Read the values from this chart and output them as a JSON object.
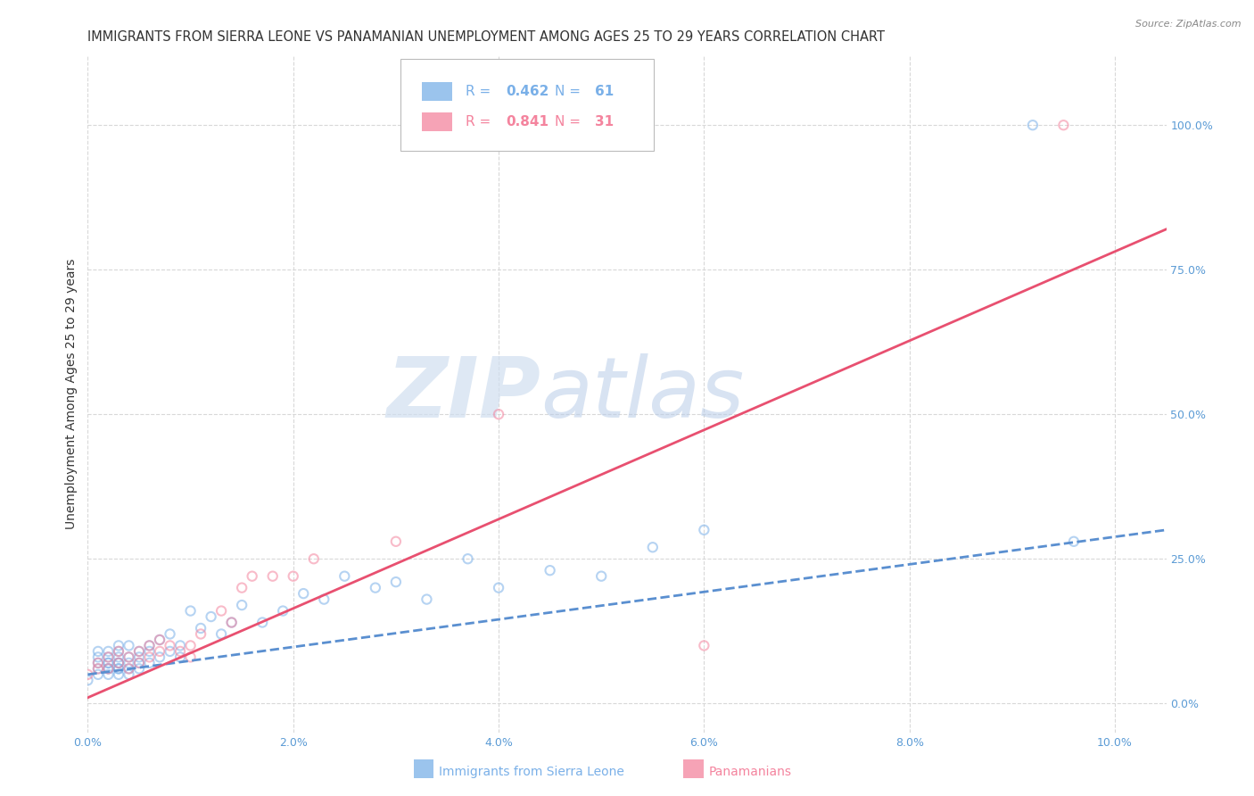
{
  "title": "IMMIGRANTS FROM SIERRA LEONE VS PANAMANIAN UNEMPLOYMENT AMONG AGES 25 TO 29 YEARS CORRELATION CHART",
  "source": "Source: ZipAtlas.com",
  "ylabel": "Unemployment Among Ages 25 to 29 years",
  "xlim": [
    0.0,
    0.105
  ],
  "ylim": [
    -0.05,
    1.12
  ],
  "right_yticks": [
    0.0,
    0.25,
    0.5,
    0.75,
    1.0
  ],
  "right_yticklabels": [
    "0.0%",
    "25.0%",
    "50.0%",
    "75.0%",
    "100.0%"
  ],
  "xticks": [
    0.0,
    0.02,
    0.04,
    0.06,
    0.08,
    0.1
  ],
  "xticklabels": [
    "0.0%",
    "2.0%",
    "4.0%",
    "6.0%",
    "8.0%",
    "10.0%"
  ],
  "series_blue": {
    "color": "#7ab0e8",
    "trend_color": "#5a8fd0",
    "trend_style": "--",
    "x": [
      0.0,
      0.001,
      0.001,
      0.001,
      0.001,
      0.001,
      0.002,
      0.002,
      0.002,
      0.002,
      0.002,
      0.002,
      0.002,
      0.003,
      0.003,
      0.003,
      0.003,
      0.003,
      0.003,
      0.003,
      0.003,
      0.004,
      0.004,
      0.004,
      0.004,
      0.004,
      0.005,
      0.005,
      0.005,
      0.005,
      0.006,
      0.006,
      0.006,
      0.007,
      0.007,
      0.008,
      0.008,
      0.009,
      0.009,
      0.01,
      0.011,
      0.012,
      0.013,
      0.014,
      0.015,
      0.017,
      0.019,
      0.021,
      0.023,
      0.025,
      0.028,
      0.03,
      0.033,
      0.037,
      0.04,
      0.045,
      0.05,
      0.055,
      0.06,
      0.092,
      0.096
    ],
    "y": [
      0.04,
      0.05,
      0.07,
      0.06,
      0.08,
      0.09,
      0.05,
      0.06,
      0.07,
      0.08,
      0.06,
      0.09,
      0.07,
      0.05,
      0.07,
      0.06,
      0.08,
      0.1,
      0.07,
      0.09,
      0.06,
      0.05,
      0.07,
      0.08,
      0.1,
      0.06,
      0.07,
      0.09,
      0.08,
      0.06,
      0.07,
      0.09,
      0.1,
      0.08,
      0.11,
      0.09,
      0.12,
      0.08,
      0.1,
      0.16,
      0.13,
      0.15,
      0.12,
      0.14,
      0.17,
      0.14,
      0.16,
      0.19,
      0.18,
      0.22,
      0.2,
      0.21,
      0.18,
      0.25,
      0.2,
      0.23,
      0.22,
      0.27,
      0.3,
      1.0,
      0.28
    ],
    "trend_x": [
      0.0,
      0.105
    ],
    "trend_y": [
      0.05,
      0.3
    ]
  },
  "series_pink": {
    "color": "#f4849e",
    "trend_color": "#e85070",
    "trend_style": "-",
    "x": [
      0.0,
      0.001,
      0.001,
      0.002,
      0.002,
      0.003,
      0.003,
      0.004,
      0.004,
      0.005,
      0.005,
      0.006,
      0.006,
      0.007,
      0.007,
      0.008,
      0.009,
      0.01,
      0.01,
      0.011,
      0.013,
      0.014,
      0.015,
      0.016,
      0.018,
      0.02,
      0.022,
      0.03,
      0.04,
      0.06,
      0.095
    ],
    "y": [
      0.05,
      0.06,
      0.07,
      0.06,
      0.08,
      0.07,
      0.09,
      0.06,
      0.08,
      0.07,
      0.09,
      0.08,
      0.1,
      0.09,
      0.11,
      0.1,
      0.09,
      0.08,
      0.1,
      0.12,
      0.16,
      0.14,
      0.2,
      0.22,
      0.22,
      0.22,
      0.25,
      0.28,
      0.5,
      0.1,
      1.0
    ],
    "trend_x": [
      0.0,
      0.105
    ],
    "trend_y": [
      0.01,
      0.82
    ]
  },
  "watermark_zip": "ZIP",
  "watermark_atlas": "atlas",
  "background_color": "#ffffff",
  "grid_color": "#d8d8d8",
  "title_fontsize": 10.5,
  "axis_label_fontsize": 10,
  "tick_fontsize": 9,
  "title_color": "#333333",
  "axis_color": "#5b9bd5",
  "dot_size": 55,
  "dot_alpha": 0.55,
  "dot_linewidth": 1.5,
  "bottom_legend": [
    {
      "label": "Immigrants from Sierra Leone",
      "color": "#7ab0e8"
    },
    {
      "label": "Panamanians",
      "color": "#f4849e"
    }
  ],
  "legend_r1": "R = ",
  "legend_v1": "0.462",
  "legend_n1": "  N = ",
  "legend_c1": "61",
  "legend_r2": "R = ",
  "legend_v2": "0.841",
  "legend_n2": "  N = ",
  "legend_c2": "31"
}
